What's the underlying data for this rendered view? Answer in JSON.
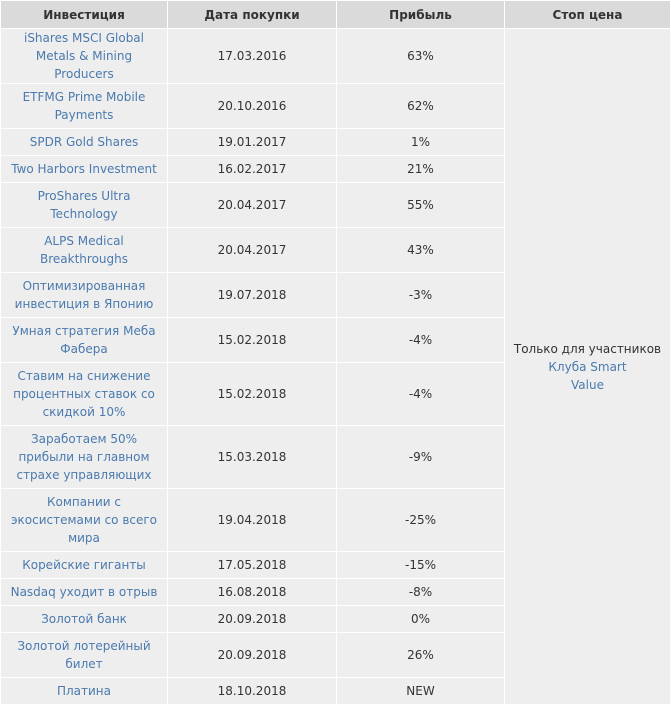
{
  "headers": {
    "investment": "Инвестиция",
    "purchase_date": "Дата покупки",
    "profit": "Прибыль",
    "stop_price": "Стоп цена"
  },
  "stop_note": {
    "prefix": "Только для участников",
    "link": "Клуба Smart Value"
  },
  "rows": [
    {
      "name": "iShares MSCI Global Metals & Mining Producers",
      "date": "17.03.2016",
      "profit": "63%"
    },
    {
      "name": "ETFMG Prime Mobile Payments",
      "date": "20.10.2016",
      "profit": "62%"
    },
    {
      "name": "SPDR Gold Shares",
      "date": "19.01.2017",
      "profit": "1%"
    },
    {
      "name": "Two Harbors Investment",
      "date": "16.02.2017",
      "profit": "21%"
    },
    {
      "name": "ProShares Ultra Technology",
      "date": "20.04.2017",
      "profit": "55%"
    },
    {
      "name": "ALPS Medical Breakthroughs",
      "date": "20.04.2017",
      "profit": "43%"
    },
    {
      "name": "Оптимизированная инвестиция в Японию",
      "date": "19.07.2018",
      "profit": "-3%"
    },
    {
      "name": "Умная стратегия Меба Фабера",
      "date": "15.02.2018",
      "profit": "-4%"
    },
    {
      "name": "Ставим на снижение процентных ставок со скидкой 10%",
      "date": "15.02.2018",
      "profit": "-4%"
    },
    {
      "name": "Заработаем 50% прибыли на главном страхе управляющих",
      "date": "15.03.2018",
      "profit": "-9%"
    },
    {
      "name": "Компании с экосистемами со всего мира",
      "date": "19.04.2018",
      "profit": "-25%"
    },
    {
      "name": "Корейские гиганты",
      "date": "17.05.2018",
      "profit": "-15%"
    },
    {
      "name": "Nasdaq уходит в отрыв",
      "date": "16.08.2018",
      "profit": "-8%"
    },
    {
      "name": "Золотой банк",
      "date": "20.09.2018",
      "profit": "0%"
    },
    {
      "name": "Золотой лотерейный билет",
      "date": "20.09.2018",
      "profit": "26%"
    },
    {
      "name": "Платина",
      "date": "18.10.2018",
      "profit": "NEW"
    }
  ]
}
